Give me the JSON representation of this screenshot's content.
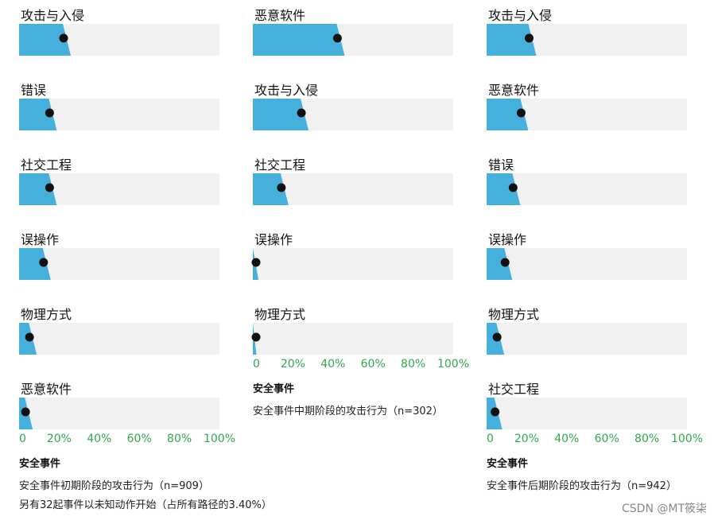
{
  "colors": {
    "bar": "#45b0dc",
    "track": "#f1f1f1",
    "dot": "#111111",
    "tick": "#2fa84f"
  },
  "chart_data": [
    {
      "type": "bar",
      "orientation": "horizontal",
      "title": "安全事件",
      "subtitle": "安全事件初期阶段的攻击行为（n=909）",
      "note": "另有32起事件以未知动作开始（占所有路径的3.40%）",
      "xlim": [
        0,
        100
      ],
      "xticks": [
        "0",
        "20%",
        "40%",
        "60%",
        "80%",
        "100%"
      ],
      "categories": [
        "攻击与入侵",
        "错误",
        "社交工程",
        "误操作",
        "物理方式",
        "恶意软件"
      ],
      "values": [
        25,
        18,
        18,
        15,
        8,
        6
      ]
    },
    {
      "type": "bar",
      "orientation": "horizontal",
      "title": "安全事件",
      "subtitle": "安全事件中期阶段的攻击行为（n=302）",
      "xlim": [
        0,
        100
      ],
      "xticks": [
        "0",
        "20%",
        "40%",
        "60%",
        "80%",
        "100%"
      ],
      "categories": [
        "恶意软件",
        "攻击与入侵",
        "社交工程",
        "误操作",
        "物理方式"
      ],
      "values": [
        45,
        27,
        17,
        2,
        1
      ]
    },
    {
      "type": "bar",
      "orientation": "horizontal",
      "title": "安全事件",
      "subtitle": "安全事件后期阶段的攻击行为（n=942）",
      "xlim": [
        0,
        100
      ],
      "xticks": [
        "0",
        "20%",
        "40%",
        "60%",
        "80%",
        "100%"
      ],
      "categories": [
        "攻击与入侵",
        "恶意软件",
        "错误",
        "误操作",
        "物理方式",
        "社交工程"
      ],
      "values": [
        24,
        20,
        16,
        12,
        8,
        7
      ]
    }
  ],
  "watermark": "CSDN @MT筱柒"
}
